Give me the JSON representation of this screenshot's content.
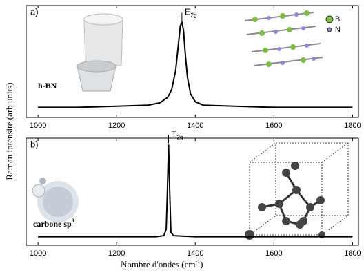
{
  "y_label": "Raman intensite (arb.units)",
  "chart_data": [
    {
      "type": "line",
      "panel_label": "a)",
      "sample_label": "h-BN",
      "peak_label": {
        "text": "E",
        "sub": "2g"
      },
      "structure_legend": [
        "B",
        "N"
      ],
      "series": [
        {
          "color": "#000000",
          "x": [
            1000,
            1100,
            1200,
            1280,
            1310,
            1330,
            1340,
            1350,
            1356,
            1362,
            1366,
            1370,
            1375,
            1380,
            1388,
            1400,
            1420,
            1500,
            1600,
            1800
          ],
          "values": [
            0.09,
            0.09,
            0.1,
            0.11,
            0.13,
            0.18,
            0.25,
            0.42,
            0.62,
            0.82,
            0.85,
            0.78,
            0.55,
            0.36,
            0.21,
            0.14,
            0.11,
            0.1,
            0.09,
            0.09
          ]
        }
      ],
      "xlim": [
        970,
        1815
      ],
      "xticks": [
        1000,
        1200,
        1400,
        1600,
        1800
      ],
      "ylim": [
        0,
        1
      ]
    },
    {
      "type": "line",
      "panel_label": "b)",
      "sample_label": {
        "text": "carbone sp",
        "sup": "3"
      },
      "peak_label": {
        "text": "T",
        "sub": "2g"
      },
      "x_label": {
        "text": "Nombre d'ondes (cm",
        "sup": "-1",
        "end": ")"
      },
      "series": [
        {
          "color": "#000000",
          "x": [
            1000,
            1300,
            1320,
            1326,
            1329,
            1332,
            1335,
            1338,
            1345,
            1400,
            1800
          ],
          "values": [
            0.08,
            0.08,
            0.09,
            0.15,
            0.5,
            0.94,
            0.5,
            0.12,
            0.09,
            0.08,
            0.08
          ]
        }
      ],
      "xlim": [
        970,
        1815
      ],
      "xticks": [
        1000,
        1200,
        1400,
        1600,
        1800
      ],
      "ylim": [
        0,
        1
      ]
    }
  ]
}
